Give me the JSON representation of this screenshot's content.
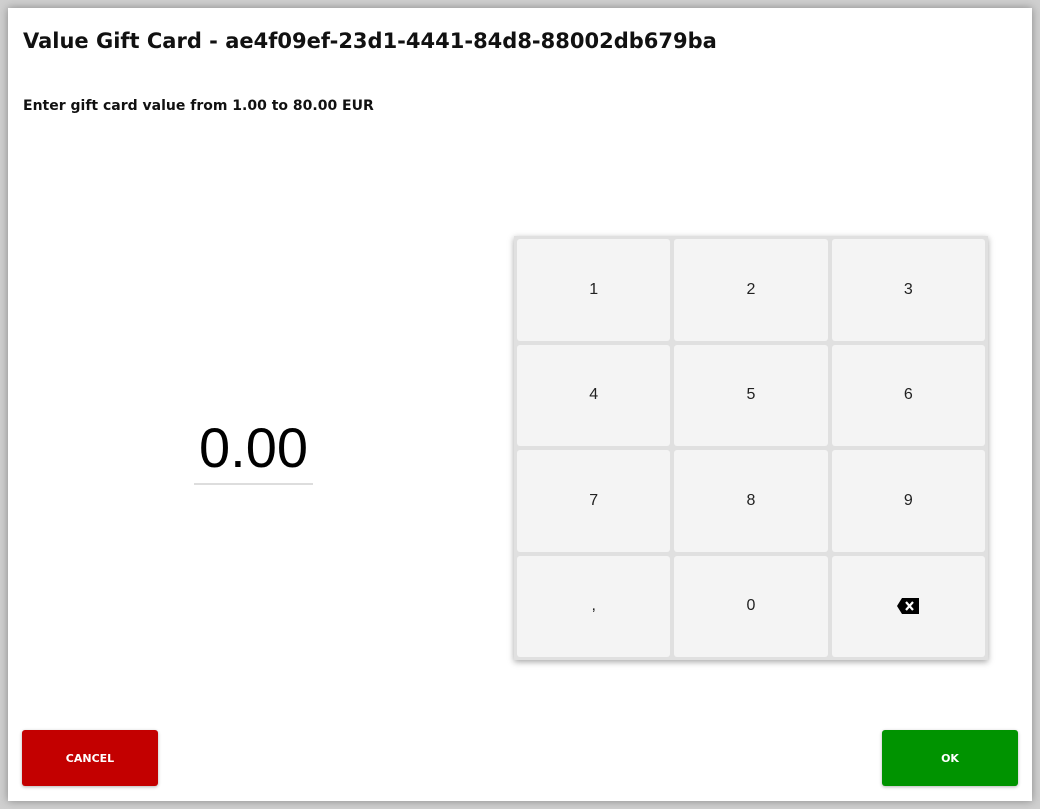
{
  "dialog": {
    "title": "Value Gift Card - ae4f09ef-23d1-4441-84d8-88002db679ba",
    "subtitle": "Enter gift card value from 1.00 to 80.00 EUR",
    "amount": "0.00"
  },
  "keypad": {
    "keys": [
      "1",
      "2",
      "3",
      "4",
      "5",
      "6",
      "7",
      "8",
      "9",
      ",",
      "0"
    ],
    "backspace_icon": "backspace-icon"
  },
  "buttons": {
    "cancel": "CANCEL",
    "ok": "OK"
  },
  "colors": {
    "cancel": "#c30000",
    "ok": "#009300"
  }
}
